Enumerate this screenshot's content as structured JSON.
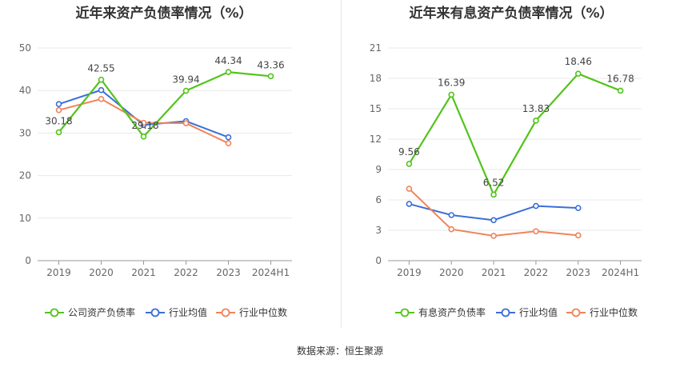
{
  "source_text": "数据来源：恒生聚源",
  "chart_data": [
    {
      "type": "line",
      "title": "近年来资产负债率情况（%）",
      "categories": [
        "2019",
        "2020",
        "2021",
        "2022",
        "2023",
        "2024H1"
      ],
      "ylim": [
        0,
        50
      ],
      "yticks": [
        0,
        10,
        20,
        30,
        40,
        50
      ],
      "grid": true,
      "legend_position": "bottom",
      "series": [
        {
          "name": "公司资产负债率",
          "color": "#52c41a",
          "values": [
            30.18,
            42.55,
            29.18,
            39.94,
            44.34,
            43.36
          ],
          "labels": [
            "30.18",
            "42.55",
            "29.18",
            "39.94",
            "44.34",
            "43.36"
          ]
        },
        {
          "name": "行业均值",
          "color": "#3a6fd8",
          "values": [
            36.8,
            40.1,
            31.9,
            32.8,
            29.0,
            null
          ]
        },
        {
          "name": "行业中位数",
          "color": "#f0845a",
          "values": [
            35.4,
            38.0,
            32.4,
            32.3,
            27.6,
            null
          ]
        }
      ]
    },
    {
      "type": "line",
      "title": "近年来有息资产负债率情况（%）",
      "categories": [
        "2019",
        "2020",
        "2021",
        "2022",
        "2023",
        "2024H1"
      ],
      "ylim": [
        0,
        21
      ],
      "yticks": [
        0,
        3,
        6,
        9,
        12,
        15,
        18,
        21
      ],
      "grid": true,
      "legend_position": "bottom",
      "series": [
        {
          "name": "有息资产负债率",
          "color": "#52c41a",
          "values": [
            9.56,
            16.39,
            6.52,
            13.83,
            18.46,
            16.78
          ],
          "labels": [
            "9.56",
            "16.39",
            "6.52",
            "13.83",
            "18.46",
            "16.78"
          ]
        },
        {
          "name": "行业均值",
          "color": "#3a6fd8",
          "values": [
            5.6,
            4.5,
            4.0,
            5.4,
            5.2,
            null
          ]
        },
        {
          "name": "行业中位数",
          "color": "#f0845a",
          "values": [
            7.1,
            3.1,
            2.45,
            2.9,
            2.5,
            null
          ]
        }
      ]
    }
  ]
}
